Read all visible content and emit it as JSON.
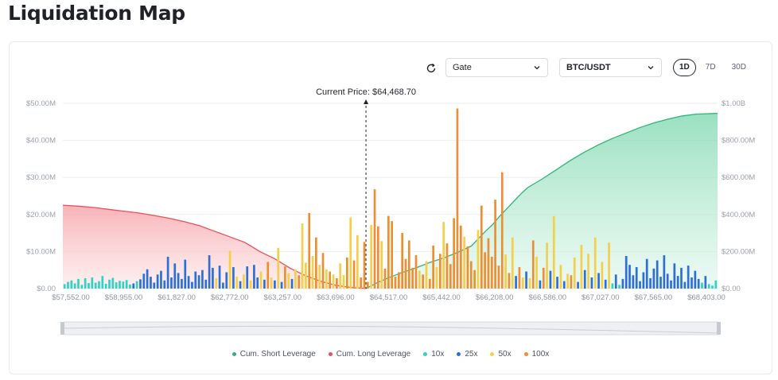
{
  "page": {
    "title": "Liquidation Map"
  },
  "toolbar": {
    "exchange": "Gate",
    "pair": "BTC/USDT",
    "ranges": [
      "1D",
      "7D",
      "30D"
    ],
    "active_range": "1D"
  },
  "colors": {
    "short": "#2fb37a",
    "long": "#e8505b",
    "10x": "#2fd3c3",
    "25x": "#2e6fd6",
    "50x": "#f4cf4b",
    "100x": "#ee8e32"
  },
  "chart_data": {
    "type": "bar",
    "current_price_label": "Current Price: $64,468.70",
    "current_price": 64468.7,
    "x_tick_labels": [
      "$57,552.00",
      "$58,955.00",
      "$61,827.00",
      "$62,772.00",
      "$63,257.00",
      "$63,696.00",
      "$64,517.00",
      "$65,442.00",
      "$66,208.00",
      "$66,586.00",
      "$67,027.00",
      "$67,565.00",
      "$68,403.00"
    ],
    "y_left_ticks": [
      "$0.00",
      "$10.00M",
      "$20.00M",
      "$30.00M",
      "$40.00M",
      "$50.00M"
    ],
    "y_left_range": [
      0,
      50
    ],
    "y_right_ticks": [
      "$0.00",
      "$200.00M",
      "$400.00M",
      "$600.00M",
      "$800.00M",
      "$1.00B"
    ],
    "y_right_range": [
      0,
      1000
    ],
    "legend": [
      "Cum. Short Leverage",
      "Cum. Long Leverage",
      "10x",
      "25x",
      "50x",
      "100x"
    ],
    "bars": [
      {
        "lev": "10x",
        "v": 1.2
      },
      {
        "lev": "10x",
        "v": 1.8
      },
      {
        "lev": "10x",
        "v": 2.2
      },
      {
        "lev": "10x",
        "v": 1.4
      },
      {
        "lev": "10x",
        "v": 2.6
      },
      {
        "lev": "10x",
        "v": 1.0
      },
      {
        "lev": "10x",
        "v": 2.8
      },
      {
        "lev": "10x",
        "v": 1.5
      },
      {
        "lev": "10x",
        "v": 3.0
      },
      {
        "lev": "10x",
        "v": 1.6
      },
      {
        "lev": "10x",
        "v": 2.0
      },
      {
        "lev": "10x",
        "v": 3.4
      },
      {
        "lev": "10x",
        "v": 1.3
      },
      {
        "lev": "10x",
        "v": 2.4
      },
      {
        "lev": "10x",
        "v": 2.9
      },
      {
        "lev": "10x",
        "v": 1.7
      },
      {
        "lev": "10x",
        "v": 2.1
      },
      {
        "lev": "10x",
        "v": 1.9
      },
      {
        "lev": "10x",
        "v": 2.3
      },
      {
        "lev": "10x",
        "v": 1.1
      },
      {
        "lev": "25x",
        "v": 1.4
      },
      {
        "lev": "10x",
        "v": 2.0
      },
      {
        "lev": "25x",
        "v": 2.5
      },
      {
        "lev": "25x",
        "v": 4.0
      },
      {
        "lev": "25x",
        "v": 5.2
      },
      {
        "lev": "25x",
        "v": 3.2
      },
      {
        "lev": "25x",
        "v": 1.6
      },
      {
        "lev": "25x",
        "v": 3.8
      },
      {
        "lev": "25x",
        "v": 4.8
      },
      {
        "lev": "25x",
        "v": 2.2
      },
      {
        "lev": "25x",
        "v": 8.6
      },
      {
        "lev": "25x",
        "v": 3.0
      },
      {
        "lev": "25x",
        "v": 6.8
      },
      {
        "lev": "25x",
        "v": 4.2
      },
      {
        "lev": "25x",
        "v": 2.6
      },
      {
        "lev": "25x",
        "v": 7.8
      },
      {
        "lev": "25x",
        "v": 3.4
      },
      {
        "lev": "25x",
        "v": 1.8
      },
      {
        "lev": "25x",
        "v": 4.6
      },
      {
        "lev": "25x",
        "v": 3.6
      },
      {
        "lev": "25x",
        "v": 5.0
      },
      {
        "lev": "25x",
        "v": 2.4
      },
      {
        "lev": "25x",
        "v": 9.0
      },
      {
        "lev": "25x",
        "v": 5.6
      },
      {
        "lev": "50x",
        "v": 2.8
      },
      {
        "lev": "25x",
        "v": 6.2
      },
      {
        "lev": "25x",
        "v": 1.6
      },
      {
        "lev": "25x",
        "v": 4.4
      },
      {
        "lev": "50x",
        "v": 10.2
      },
      {
        "lev": "25x",
        "v": 5.8
      },
      {
        "lev": "50x",
        "v": 3.2
      },
      {
        "lev": "25x",
        "v": 2.0
      },
      {
        "lev": "50x",
        "v": 3.8
      },
      {
        "lev": "25x",
        "v": 6.0
      },
      {
        "lev": "50x",
        "v": 2.2
      },
      {
        "lev": "25x",
        "v": 6.4
      },
      {
        "lev": "25x",
        "v": 3.0
      },
      {
        "lev": "50x",
        "v": 4.6
      },
      {
        "lev": "25x",
        "v": 2.4
      },
      {
        "lev": "100x",
        "v": 7.2
      },
      {
        "lev": "50x",
        "v": 3.0
      },
      {
        "lev": "25x",
        "v": 2.2
      },
      {
        "lev": "50x",
        "v": 11.0
      },
      {
        "lev": "25x",
        "v": 1.8
      },
      {
        "lev": "100x",
        "v": 6.0
      },
      {
        "lev": "50x",
        "v": 4.2
      },
      {
        "lev": "25x",
        "v": 2.6
      },
      {
        "lev": "50x",
        "v": 5.2
      },
      {
        "lev": "100x",
        "v": 3.6
      },
      {
        "lev": "50x",
        "v": 17.6
      },
      {
        "lev": "50x",
        "v": 7.0
      },
      {
        "lev": "100x",
        "v": 20.4
      },
      {
        "lev": "50x",
        "v": 8.8
      },
      {
        "lev": "100x",
        "v": 13.8
      },
      {
        "lev": "50x",
        "v": 6.4
      },
      {
        "lev": "100x",
        "v": 9.6
      },
      {
        "lev": "50x",
        "v": 5.2
      },
      {
        "lev": "100x",
        "v": 4.6
      },
      {
        "lev": "50x",
        "v": 3.8
      },
      {
        "lev": "100x",
        "v": 2.8
      },
      {
        "lev": "50x",
        "v": 6.8
      },
      {
        "lev": "50x",
        "v": 3.6
      },
      {
        "lev": "100x",
        "v": 8.4
      },
      {
        "lev": "50x",
        "v": 19.2
      },
      {
        "lev": "100x",
        "v": 7.6
      },
      {
        "lev": "50x",
        "v": 14.4
      },
      {
        "lev": "100x",
        "v": 3.0
      },
      {
        "lev": "100x",
        "v": 12.6
      },
      {
        "lev": "100x",
        "v": 1.8
      },
      {
        "lev": "50x",
        "v": 17.2
      },
      {
        "lev": "100x",
        "v": 26.8
      },
      {
        "lev": "100x",
        "v": 16.8
      },
      {
        "lev": "50x",
        "v": 12.8
      },
      {
        "lev": "100x",
        "v": 5.4
      },
      {
        "lev": "100x",
        "v": 19.6
      },
      {
        "lev": "100x",
        "v": 18.2
      },
      {
        "lev": "100x",
        "v": 3.2
      },
      {
        "lev": "100x",
        "v": 4.4
      },
      {
        "lev": "100x",
        "v": 15.0
      },
      {
        "lev": "100x",
        "v": 8.0
      },
      {
        "lev": "100x",
        "v": 13.0
      },
      {
        "lev": "100x",
        "v": 5.6
      },
      {
        "lev": "100x",
        "v": 9.0
      },
      {
        "lev": "50x",
        "v": 4.8
      },
      {
        "lev": "100x",
        "v": 3.8
      },
      {
        "lev": "50x",
        "v": 7.4
      },
      {
        "lev": "100x",
        "v": 2.6
      },
      {
        "lev": "100x",
        "v": 11.6
      },
      {
        "lev": "50x",
        "v": 5.8
      },
      {
        "lev": "100x",
        "v": 9.4
      },
      {
        "lev": "50x",
        "v": 18.0
      },
      {
        "lev": "100x",
        "v": 12.2
      },
      {
        "lev": "100x",
        "v": 6.6
      },
      {
        "lev": "100x",
        "v": 19.0
      },
      {
        "lev": "100x",
        "v": 48.6
      },
      {
        "lev": "100x",
        "v": 17.0
      },
      {
        "lev": "50x",
        "v": 14.0
      },
      {
        "lev": "100x",
        "v": 11.4
      },
      {
        "lev": "100x",
        "v": 7.4
      },
      {
        "lev": "100x",
        "v": 5.0
      },
      {
        "lev": "50x",
        "v": 15.8
      },
      {
        "lev": "100x",
        "v": 22.4
      },
      {
        "lev": "100x",
        "v": 9.8
      },
      {
        "lev": "100x",
        "v": 13.6
      },
      {
        "lev": "100x",
        "v": 8.6
      },
      {
        "lev": "100x",
        "v": 24.0
      },
      {
        "lev": "100x",
        "v": 6.2
      },
      {
        "lev": "100x",
        "v": 31.4
      },
      {
        "lev": "50x",
        "v": 9.2
      },
      {
        "lev": "100x",
        "v": 4.2
      },
      {
        "lev": "50x",
        "v": 13.8
      },
      {
        "lev": "25x",
        "v": 3.4
      },
      {
        "lev": "100x",
        "v": 5.8
      },
      {
        "lev": "50x",
        "v": 3.0
      },
      {
        "lev": "25x",
        "v": 4.6
      },
      {
        "lev": "50x",
        "v": 2.8
      },
      {
        "lev": "100x",
        "v": 13.0
      },
      {
        "lev": "50x",
        "v": 8.6
      },
      {
        "lev": "25x",
        "v": 2.2
      },
      {
        "lev": "100x",
        "v": 5.6
      },
      {
        "lev": "50x",
        "v": 12.4
      },
      {
        "lev": "25x",
        "v": 4.8
      },
      {
        "lev": "50x",
        "v": 19.6
      },
      {
        "lev": "25x",
        "v": 3.2
      },
      {
        "lev": "50x",
        "v": 6.4
      },
      {
        "lev": "25x",
        "v": 2.0
      },
      {
        "lev": "50x",
        "v": 4.0
      },
      {
        "lev": "100x",
        "v": 3.6
      },
      {
        "lev": "50x",
        "v": 8.4
      },
      {
        "lev": "25x",
        "v": 1.8
      },
      {
        "lev": "50x",
        "v": 11.8
      },
      {
        "lev": "25x",
        "v": 5.0
      },
      {
        "lev": "50x",
        "v": 9.4
      },
      {
        "lev": "25x",
        "v": 3.0
      },
      {
        "lev": "50x",
        "v": 13.8
      },
      {
        "lev": "25x",
        "v": 4.2
      },
      {
        "lev": "50x",
        "v": 7.2
      },
      {
        "lev": "25x",
        "v": 2.4
      },
      {
        "lev": "50x",
        "v": 12.4
      },
      {
        "lev": "10x",
        "v": 1.4
      },
      {
        "lev": "25x",
        "v": 3.8
      },
      {
        "lev": "10x",
        "v": 1.0
      },
      {
        "lev": "25x",
        "v": 2.6
      },
      {
        "lev": "25x",
        "v": 8.8
      },
      {
        "lev": "25x",
        "v": 6.4
      },
      {
        "lev": "25x",
        "v": 3.6
      },
      {
        "lev": "25x",
        "v": 5.8
      },
      {
        "lev": "25x",
        "v": 2.0
      },
      {
        "lev": "25x",
        "v": 4.4
      },
      {
        "lev": "25x",
        "v": 8.0
      },
      {
        "lev": "25x",
        "v": 2.8
      },
      {
        "lev": "25x",
        "v": 5.4
      },
      {
        "lev": "25x",
        "v": 7.6
      },
      {
        "lev": "25x",
        "v": 3.2
      },
      {
        "lev": "25x",
        "v": 9.0
      },
      {
        "lev": "25x",
        "v": 4.0
      },
      {
        "lev": "25x",
        "v": 2.2
      },
      {
        "lev": "25x",
        "v": 6.8
      },
      {
        "lev": "25x",
        "v": 3.4
      },
      {
        "lev": "25x",
        "v": 5.6
      },
      {
        "lev": "25x",
        "v": 1.8
      },
      {
        "lev": "25x",
        "v": 6.2
      },
      {
        "lev": "25x",
        "v": 3.0
      },
      {
        "lev": "25x",
        "v": 4.8
      },
      {
        "lev": "25x",
        "v": 2.6
      },
      {
        "lev": "10x",
        "v": 1.6
      },
      {
        "lev": "25x",
        "v": 3.4
      },
      {
        "lev": "10x",
        "v": 1.2
      },
      {
        "lev": "10x",
        "v": 0.8
      },
      {
        "lev": "10x",
        "v": 2.2
      }
    ],
    "cum_long": [
      [
        0,
        450
      ],
      [
        0.05,
        445
      ],
      [
        0.1,
        438
      ],
      [
        0.15,
        428
      ],
      [
        0.2,
        418
      ],
      [
        0.25,
        408
      ],
      [
        0.3,
        395
      ],
      [
        0.35,
        380
      ],
      [
        0.4,
        362
      ],
      [
        0.45,
        340
      ],
      [
        0.5,
        310
      ],
      [
        0.55,
        280
      ],
      [
        0.6,
        250
      ],
      [
        0.62,
        230
      ],
      [
        0.65,
        200
      ],
      [
        0.7,
        160
      ],
      [
        0.75,
        110
      ],
      [
        0.8,
        70
      ],
      [
        0.85,
        40
      ],
      [
        0.9,
        18
      ],
      [
        0.95,
        6
      ],
      [
        1.0,
        0
      ]
    ],
    "cum_short": [
      [
        0,
        0
      ],
      [
        0.03,
        30
      ],
      [
        0.06,
        55
      ],
      [
        0.1,
        85
      ],
      [
        0.14,
        110
      ],
      [
        0.18,
        140
      ],
      [
        0.22,
        165
      ],
      [
        0.26,
        195
      ],
      [
        0.3,
        230
      ],
      [
        0.32,
        270
      ],
      [
        0.34,
        310
      ],
      [
        0.36,
        345
      ],
      [
        0.38,
        390
      ],
      [
        0.4,
        430
      ],
      [
        0.42,
        470
      ],
      [
        0.44,
        510
      ],
      [
        0.46,
        545
      ],
      [
        0.5,
        590
      ],
      [
        0.54,
        640
      ],
      [
        0.58,
        690
      ],
      [
        0.62,
        735
      ],
      [
        0.66,
        775
      ],
      [
        0.7,
        810
      ],
      [
        0.74,
        840
      ],
      [
        0.78,
        870
      ],
      [
        0.82,
        895
      ],
      [
        0.86,
        915
      ],
      [
        0.9,
        932
      ],
      [
        0.94,
        942
      ],
      [
        1.0,
        946
      ]
    ]
  }
}
